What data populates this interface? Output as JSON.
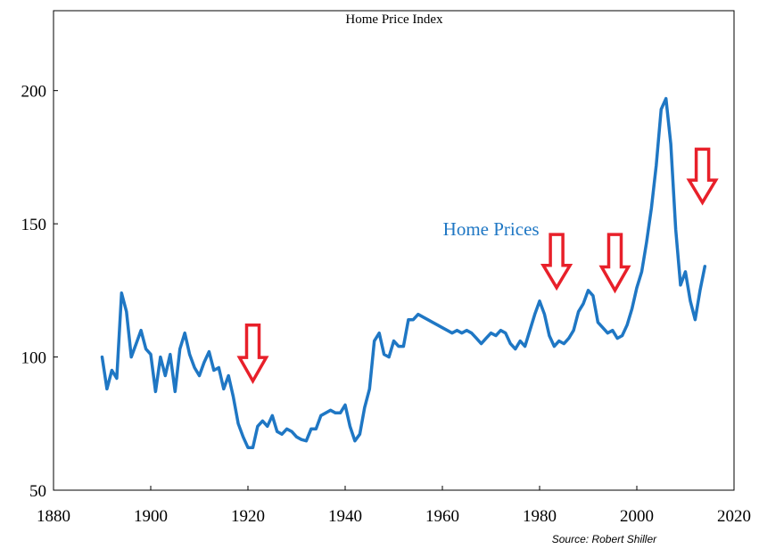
{
  "chart_data": {
    "type": "line",
    "title": "Home Price Index",
    "xlabel": "",
    "ylabel": "",
    "xlim": [
      1880,
      2020
    ],
    "ylim": [
      50,
      230
    ],
    "x_ticks": [
      1880,
      1900,
      1920,
      1940,
      1960,
      1980,
      2000,
      2020
    ],
    "y_ticks": [
      50,
      100,
      150,
      200
    ],
    "x_tick_labels": [
      "1880",
      "1900",
      "1920",
      "1940",
      "1960",
      "1980",
      "2000",
      "2020"
    ],
    "y_tick_labels": [
      "50",
      "100",
      "150",
      "200"
    ],
    "grid": false,
    "series": [
      {
        "name": "Home Prices",
        "color": "#1f77c4",
        "points": [
          [
            1890,
            100
          ],
          [
            1891,
            88
          ],
          [
            1892,
            95
          ],
          [
            1893,
            92
          ],
          [
            1894,
            124
          ],
          [
            1895,
            117
          ],
          [
            1896,
            100
          ],
          [
            1897,
            105
          ],
          [
            1898,
            110
          ],
          [
            1899,
            103
          ],
          [
            1900,
            101
          ],
          [
            1901,
            87
          ],
          [
            1902,
            100
          ],
          [
            1903,
            93
          ],
          [
            1904,
            101
          ],
          [
            1905,
            87
          ],
          [
            1906,
            103
          ],
          [
            1907,
            109
          ],
          [
            1908,
            101
          ],
          [
            1909,
            96
          ],
          [
            1910,
            93
          ],
          [
            1911,
            98
          ],
          [
            1912,
            102
          ],
          [
            1913,
            95
          ],
          [
            1914,
            96
          ],
          [
            1915,
            88
          ],
          [
            1916,
            93
          ],
          [
            1917,
            85
          ],
          [
            1918,
            75
          ],
          [
            1919,
            70
          ],
          [
            1920,
            66
          ],
          [
            1921,
            66
          ],
          [
            1922,
            74
          ],
          [
            1923,
            76
          ],
          [
            1924,
            74
          ],
          [
            1925,
            78
          ],
          [
            1926,
            72
          ],
          [
            1927,
            71
          ],
          [
            1928,
            73
          ],
          [
            1929,
            72
          ],
          [
            1930,
            70
          ],
          [
            1931,
            69
          ],
          [
            1932,
            68.5
          ],
          [
            1933,
            73
          ],
          [
            1934,
            73
          ],
          [
            1935,
            78
          ],
          [
            1936,
            79
          ],
          [
            1937,
            80
          ],
          [
            1938,
            79
          ],
          [
            1939,
            79
          ],
          [
            1940,
            82
          ],
          [
            1941,
            74
          ],
          [
            1942,
            68.5
          ],
          [
            1943,
            71
          ],
          [
            1944,
            81
          ],
          [
            1945,
            88
          ],
          [
            1946,
            106
          ],
          [
            1947,
            109
          ],
          [
            1948,
            101
          ],
          [
            1949,
            100
          ],
          [
            1950,
            106
          ],
          [
            1951,
            104
          ],
          [
            1952,
            104
          ],
          [
            1953,
            114
          ],
          [
            1954,
            114
          ],
          [
            1955,
            116
          ],
          [
            1956,
            115
          ],
          [
            1957,
            114
          ],
          [
            1958,
            113
          ],
          [
            1959,
            112
          ],
          [
            1960,
            111
          ],
          [
            1961,
            110
          ],
          [
            1962,
            109
          ],
          [
            1963,
            110
          ],
          [
            1964,
            109
          ],
          [
            1965,
            110
          ],
          [
            1966,
            109
          ],
          [
            1967,
            107
          ],
          [
            1968,
            105
          ],
          [
            1969,
            107
          ],
          [
            1970,
            109
          ],
          [
            1971,
            108
          ],
          [
            1972,
            110
          ],
          [
            1973,
            109
          ],
          [
            1974,
            105
          ],
          [
            1975,
            103
          ],
          [
            1976,
            106
          ],
          [
            1977,
            104
          ],
          [
            1978,
            110
          ],
          [
            1979,
            116
          ],
          [
            1980,
            121
          ],
          [
            1981,
            116
          ],
          [
            1982,
            108
          ],
          [
            1983,
            104
          ],
          [
            1984,
            106
          ],
          [
            1985,
            105
          ],
          [
            1986,
            107
          ],
          [
            1987,
            110
          ],
          [
            1988,
            117
          ],
          [
            1989,
            120
          ],
          [
            1990,
            125
          ],
          [
            1991,
            123
          ],
          [
            1992,
            113
          ],
          [
            1993,
            111
          ],
          [
            1994,
            109
          ],
          [
            1995,
            110
          ],
          [
            1996,
            107
          ],
          [
            1997,
            108
          ],
          [
            1998,
            112
          ],
          [
            1999,
            118
          ],
          [
            2000,
            126
          ],
          [
            2001,
            132
          ],
          [
            2002,
            143
          ],
          [
            2003,
            156
          ],
          [
            2004,
            172
          ],
          [
            2005,
            193
          ],
          [
            2006,
            197
          ],
          [
            2007,
            180
          ],
          [
            2008,
            148
          ],
          [
            2009,
            127
          ],
          [
            2010,
            132
          ],
          [
            2011,
            121
          ],
          [
            2012,
            114
          ],
          [
            2013,
            125
          ],
          [
            2014,
            134
          ]
        ]
      }
    ],
    "annotations": [
      {
        "text": "Home Prices",
        "x": 1971.5,
        "y": 148
      },
      {
        "text": "Source: Robert Shiller",
        "x": 2001,
        "y": 48.5
      }
    ],
    "arrows": [
      {
        "year": 1921,
        "top": 112,
        "bottom": 91
      },
      {
        "year": 1983.5,
        "top": 146,
        "bottom": 126
      },
      {
        "year": 1995.5,
        "top": 146,
        "bottom": 125
      },
      {
        "year": 2013.5,
        "top": 178,
        "bottom": 158
      }
    ],
    "arrow_color": "#e8202a"
  }
}
